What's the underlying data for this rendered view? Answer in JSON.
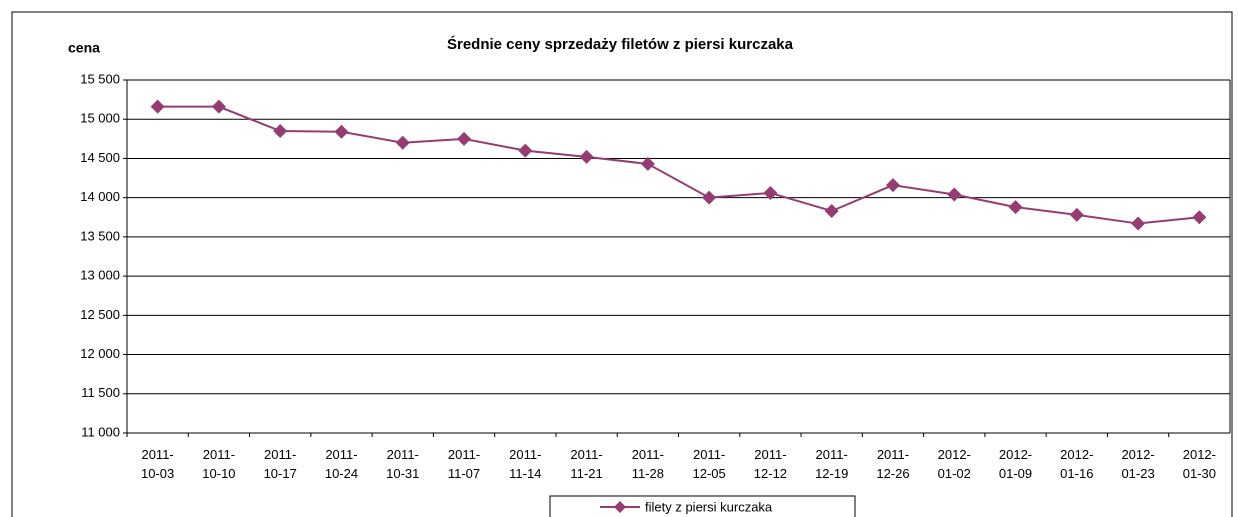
{
  "chart_data": {
    "type": "line",
    "title": "Średnie ceny sprzedaży filetów z piersi kurczaka",
    "y_label": "cena",
    "categories": [
      "2011-10-03",
      "2011-10-10",
      "2011-10-17",
      "2011-10-24",
      "2011-10-31",
      "2011-11-07",
      "2011-11-14",
      "2011-11-21",
      "2011-11-28",
      "2011-12-05",
      "2011-12-12",
      "2011-12-19",
      "2011-12-26",
      "2012-01-02",
      "2012-01-09",
      "2012-01-16",
      "2012-01-23",
      "2012-01-30"
    ],
    "series": [
      {
        "name": "filety z piersi kurczaka",
        "color": "#953d72",
        "values": [
          15160,
          15160,
          14850,
          14840,
          14700,
          14750,
          14600,
          14520,
          14430,
          14000,
          14060,
          13830,
          14160,
          14040,
          13880,
          13780,
          13670,
          13750
        ]
      }
    ],
    "ylim": [
      11000,
      15500
    ],
    "yticks": [
      {
        "value": 11000,
        "label": "11 000"
      },
      {
        "value": 11500,
        "label": "11 500"
      },
      {
        "value": 12000,
        "label": "12 000"
      },
      {
        "value": 12500,
        "label": "12 500"
      },
      {
        "value": 13000,
        "label": "13 000"
      },
      {
        "value": 13500,
        "label": "13 500"
      },
      {
        "value": 14000,
        "label": "14 000"
      },
      {
        "value": 14500,
        "label": "14 500"
      },
      {
        "value": 15000,
        "label": "15 000"
      },
      {
        "value": 15500,
        "label": "15 500"
      }
    ],
    "grid": true
  }
}
